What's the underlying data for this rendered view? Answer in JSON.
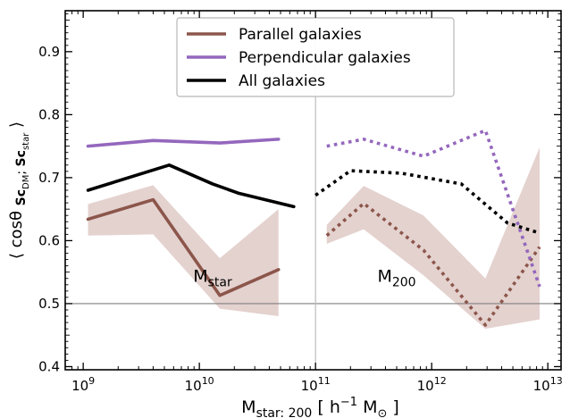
{
  "chart_data": {
    "type": "line",
    "xscale": "log",
    "xlim": [
      700000000,
      13000000000000
    ],
    "ylim": [
      0.395,
      0.965
    ],
    "x_ticks": [
      {
        "value": 1000000000,
        "base": "10",
        "exp": "9"
      },
      {
        "value": 10000000000,
        "base": "10",
        "exp": "10"
      },
      {
        "value": 100000000000,
        "base": "10",
        "exp": "11"
      },
      {
        "value": 1000000000000,
        "base": "10",
        "exp": "12"
      },
      {
        "value": 10000000000000,
        "base": "10",
        "exp": "13"
      }
    ],
    "y_ticks": [
      "0.4",
      "0.5",
      "0.6",
      "0.7",
      "0.8",
      "0.9"
    ],
    "xlabel": {
      "main": "M",
      "sub": "star: 200",
      "bracket_open": " [ h",
      "sup": "−1",
      "unit": " M",
      "unit_sub": "⊙",
      "bracket_close": " ]"
    },
    "ylabel": {
      "pre": "⟨ cosθ ",
      "b1": "Sc",
      "s1": "DM",
      "sep": "; ",
      "b2": "Sc",
      "s2": "star",
      "post": " ⟩"
    },
    "reference_line_y": 0.5,
    "divider_x": 100000000000,
    "panel_labels": [
      {
        "main": "M",
        "sub": "star",
        "x": 13000000000,
        "y": 0.535
      },
      {
        "main": "M",
        "sub": "200",
        "x": 500000000000,
        "y": 0.535
      }
    ],
    "colors": {
      "parallel": "#8c564b",
      "perpendicular": "#9467bd",
      "all": "#000000",
      "band": "#e4d2cf",
      "ref_line": "#7f7f7f",
      "divider": "#bdbdbd"
    },
    "series": [
      {
        "name": "Parallel galaxies",
        "color": "#8c564b",
        "style": "solid",
        "panel": "star",
        "x": [
          1100000000,
          4000000000,
          15000000000,
          48000000000
        ],
        "y": [
          0.634,
          0.665,
          0.513,
          0.554
        ],
        "band_lo": [
          0.608,
          0.61,
          0.492,
          0.48
        ],
        "band_hi": [
          0.658,
          0.688,
          0.572,
          0.65
        ]
      },
      {
        "name": "Perpendicular galaxies",
        "color": "#9467bd",
        "style": "solid",
        "panel": "star",
        "x": [
          1100000000,
          4000000000,
          15000000000,
          48000000000
        ],
        "y": [
          0.75,
          0.759,
          0.755,
          0.761
        ]
      },
      {
        "name": "All galaxies",
        "color": "#000000",
        "style": "solid",
        "panel": "star",
        "x": [
          1100000000,
          5500000000,
          13000000000,
          22000000000,
          65000000000
        ],
        "y": [
          0.68,
          0.72,
          0.69,
          0.675,
          0.654
        ]
      },
      {
        "name": "Parallel galaxies",
        "color": "#8c564b",
        "style": "dotted",
        "panel": "200",
        "x": [
          125000000000,
          260000000000,
          850000000000,
          2900000000000,
          8500000000000
        ],
        "y": [
          0.608,
          0.659,
          0.585,
          0.466,
          0.59
        ],
        "band_lo": [
          0.595,
          0.618,
          0.545,
          0.46,
          0.475
        ],
        "band_hi": [
          0.625,
          0.687,
          0.64,
          0.54,
          0.748
        ]
      },
      {
        "name": "Perpendicular galaxies",
        "color": "#9467bd",
        "style": "dotted",
        "panel": "200",
        "x": [
          125000000000,
          260000000000,
          850000000000,
          2900000000000,
          8500000000000
        ],
        "y": [
          0.75,
          0.761,
          0.734,
          0.775,
          0.527
        ]
      },
      {
        "name": "All galaxies",
        "color": "#000000",
        "style": "dotted",
        "panel": "200",
        "x": [
          100000000000,
          200000000000,
          550000000000,
          1800000000000,
          4500000000000,
          8500000000000
        ],
        "y": [
          0.672,
          0.711,
          0.707,
          0.69,
          0.628,
          0.612
        ]
      }
    ],
    "legend": {
      "position": "top-center",
      "entries": [
        {
          "label": "Parallel galaxies",
          "color": "#8c564b"
        },
        {
          "label": "Perpendicular galaxies",
          "color": "#9467bd"
        },
        {
          "label": "All galaxies",
          "color": "#000000"
        }
      ]
    }
  }
}
